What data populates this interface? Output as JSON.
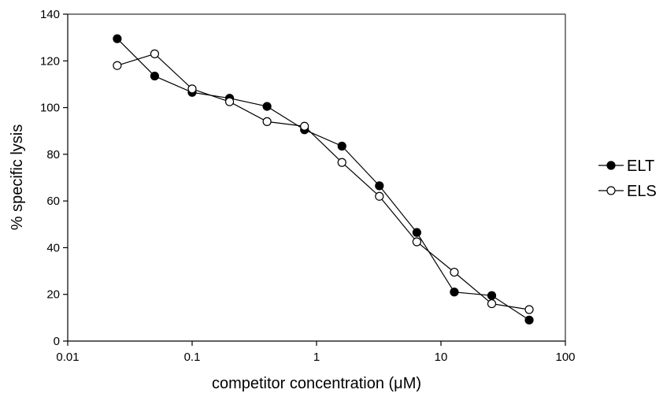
{
  "chart_data": {
    "type": "scatter",
    "xscale": "log",
    "xlabel": "competitor concentration (μM)",
    "ylabel": "% specific lysis",
    "xlim": [
      0.01,
      100
    ],
    "ylim": [
      0,
      140
    ],
    "xticks": [
      0.01,
      0.1,
      1,
      10,
      100
    ],
    "xtick_labels": [
      "0.01",
      "0.1",
      "1",
      "10",
      "100"
    ],
    "yticks": [
      0,
      20,
      40,
      60,
      80,
      100,
      120,
      140
    ],
    "ytick_labels": [
      "0",
      "20",
      "40",
      "60",
      "80",
      "100",
      "120",
      "140"
    ],
    "grid": false,
    "legend_position": "right",
    "series": [
      {
        "name": "ELT",
        "marker": "filled-circle",
        "color": "#000000",
        "x": [
          0.025,
          0.05,
          0.1,
          0.2,
          0.4,
          0.8,
          1.6,
          3.2,
          6.4,
          12.8,
          25.6,
          51.2
        ],
        "y": [
          129.5,
          113.5,
          106.5,
          104,
          100.5,
          90.5,
          83.5,
          66.5,
          46.5,
          21,
          19.5,
          9
        ]
      },
      {
        "name": "ELS",
        "marker": "open-circle",
        "color": "#000000",
        "x": [
          0.025,
          0.05,
          0.1,
          0.2,
          0.4,
          0.8,
          1.6,
          3.2,
          6.4,
          12.8,
          25.6,
          51.2
        ],
        "y": [
          118,
          123,
          108,
          102.5,
          94,
          92,
          76.5,
          62,
          42.5,
          29.5,
          16,
          13.5
        ]
      }
    ]
  }
}
